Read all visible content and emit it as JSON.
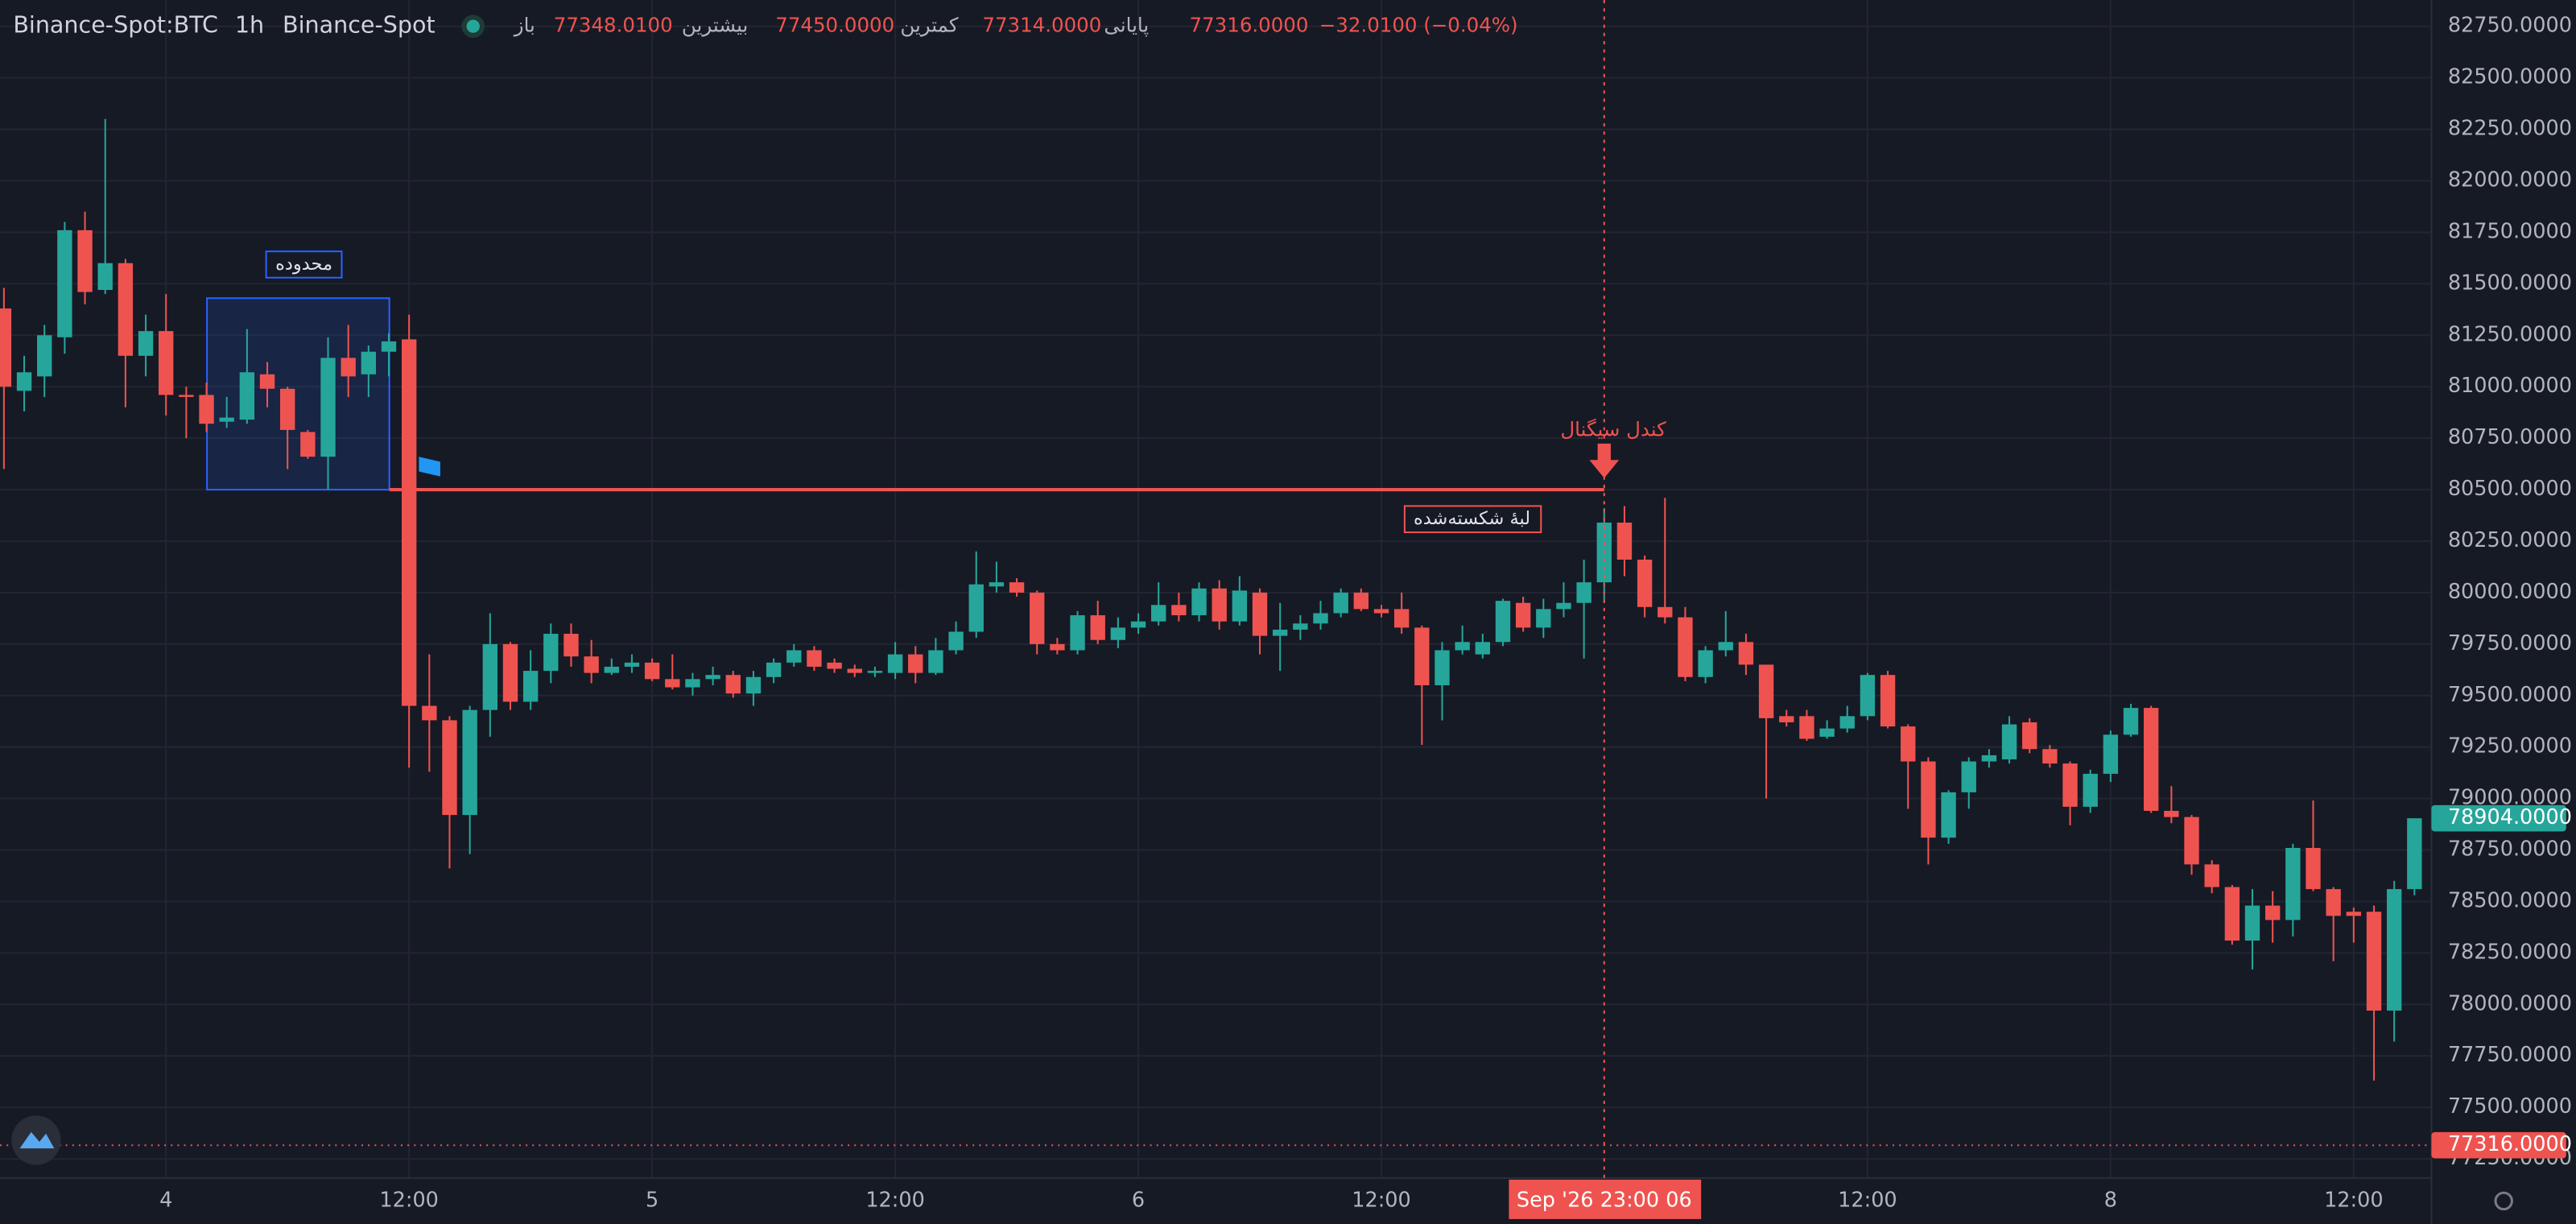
{
  "header": {
    "symbol": "Binance-Spot:BTC",
    "interval": "1h",
    "exchange": "Binance-Spot",
    "ohlc": [
      {
        "label": "باز",
        "value": "77348.0100"
      },
      {
        "label": "بیشترین",
        "value": "77450.0000"
      },
      {
        "label": "کمترین",
        "value": "77314.0000"
      },
      {
        "label": "پایانی",
        "value": "77316.0000"
      }
    ],
    "change": "−32.0100 (−0.04%)"
  },
  "chart_data": {
    "type": "candlestick",
    "categories": [
      null,
      null,
      null,
      null,
      null,
      null,
      null,
      null,
      "4",
      null,
      null,
      null,
      null,
      null,
      null,
      null,
      null,
      null,
      null,
      null,
      "12:00",
      null,
      null,
      null,
      null,
      null,
      null,
      null,
      null,
      null,
      null,
      null,
      "5",
      null,
      null,
      null,
      null,
      null,
      null,
      null,
      null,
      null,
      null,
      null,
      "12:00",
      null,
      null,
      null,
      null,
      null,
      null,
      null,
      null,
      null,
      null,
      null,
      "6",
      null,
      null,
      null,
      null,
      null,
      null,
      null,
      null,
      null,
      null,
      null,
      "12:00",
      null,
      null,
      null,
      null,
      null,
      null,
      null,
      null,
      null,
      null,
      null,
      null,
      null,
      null,
      null,
      null,
      null,
      null,
      null,
      null,
      null,
      null,
      null,
      "12:00",
      null,
      null,
      null,
      null,
      null,
      null,
      null,
      null,
      null,
      null,
      null,
      "8",
      null,
      null,
      null,
      null,
      null,
      null,
      null,
      null,
      null,
      null,
      null,
      "12:00",
      null,
      null,
      null
    ],
    "open": [
      81380,
      80980,
      81050,
      81240,
      81760,
      81470,
      81600,
      81150,
      81270,
      80960,
      80960,
      80830,
      80840,
      81060,
      80990,
      80780,
      80660,
      81140,
      81060,
      81170,
      81230,
      79450,
      79380,
      78920,
      79430,
      79750,
      79470,
      79620,
      79800,
      79690,
      79610,
      79640,
      79660,
      79580,
      79540,
      79580,
      79600,
      79510,
      79590,
      79660,
      79720,
      79660,
      79630,
      79610,
      79610,
      79700,
      79610,
      79720,
      79810,
      80030,
      80050,
      80000,
      79750,
      79720,
      79890,
      79770,
      79830,
      79860,
      79940,
      79890,
      80020,
      79860,
      80000,
      79790,
      79820,
      79850,
      79900,
      80000,
      79920,
      79920,
      79830,
      79550,
      79720,
      79700,
      79760,
      79950,
      79830,
      79920,
      79950,
      80050,
      80340,
      80160,
      79930,
      79880,
      79590,
      79720,
      79760,
      79650,
      79400,
      79400,
      79300,
      79340,
      79400,
      79600,
      79350,
      79180,
      78810,
      79030,
      79180,
      79190,
      79370,
      79240,
      79170,
      78960,
      79120,
      79310,
      79440,
      78940,
      78910,
      78680,
      78570,
      78310,
      78480,
      78410,
      78760,
      78560,
      78450,
      78450,
      77970,
      78560
    ],
    "high": [
      81480,
      81150,
      81300,
      81800,
      81850,
      82300,
      81620,
      81350,
      81450,
      81000,
      81020,
      80950,
      81280,
      81120,
      81000,
      80790,
      81240,
      81300,
      81200,
      81260,
      81350,
      79700,
      79400,
      79450,
      79900,
      79760,
      79720,
      79850,
      79850,
      79770,
      79680,
      79700,
      79680,
      79700,
      79610,
      79640,
      79620,
      79620,
      79680,
      79750,
      79740,
      79680,
      79650,
      79640,
      79760,
      79740,
      79780,
      79860,
      80200,
      80150,
      80070,
      80010,
      79780,
      79910,
      79960,
      79880,
      79900,
      80050,
      80000,
      80050,
      80060,
      80080,
      80020,
      79950,
      79890,
      79960,
      80020,
      80020,
      79940,
      80000,
      79840,
      79760,
      79840,
      79800,
      79970,
      79980,
      79970,
      80050,
      80160,
      80410,
      80420,
      80180,
      80460,
      79930,
      79740,
      79910,
      79800,
      79650,
      79430,
      79430,
      79380,
      79450,
      79610,
      79620,
      79360,
      79200,
      79040,
      79200,
      79240,
      79400,
      79390,
      79260,
      79180,
      79140,
      79330,
      79460,
      79450,
      79060,
      78920,
      78700,
      78580,
      78560,
      78550,
      78780,
      78990,
      78570,
      78470,
      78480,
      78600,
      78904
    ],
    "low": [
      80600,
      80880,
      80950,
      81160,
      81400,
      81450,
      80900,
      81050,
      80860,
      80750,
      80780,
      80800,
      80820,
      80900,
      80600,
      80650,
      80500,
      80950,
      80950,
      81050,
      79150,
      79130,
      78660,
      78730,
      79300,
      79430,
      79430,
      79560,
      79640,
      79560,
      79600,
      79610,
      79570,
      79530,
      79500,
      79550,
      79490,
      79450,
      79560,
      79640,
      79620,
      79610,
      79590,
      79590,
      79580,
      79560,
      79600,
      79700,
      79780,
      80000,
      79980,
      79700,
      79700,
      79700,
      79750,
      79730,
      79800,
      79840,
      79860,
      79860,
      79820,
      79840,
      79700,
      79620,
      79770,
      79820,
      79880,
      79910,
      79880,
      79800,
      79260,
      79380,
      79700,
      79680,
      79740,
      79810,
      79780,
      79880,
      79680,
      79950,
      80080,
      79880,
      79850,
      79570,
      79560,
      79690,
      79600,
      79000,
      79350,
      79280,
      79290,
      79320,
      79380,
      79340,
      78950,
      78680,
      78780,
      78950,
      79150,
      79170,
      79220,
      79150,
      78870,
      78930,
      79080,
      79300,
      78930,
      78880,
      78630,
      78540,
      78290,
      78170,
      78300,
      78330,
      78550,
      78210,
      78300,
      77630,
      77820,
      78530
    ],
    "close": [
      81000,
      81070,
      81250,
      81760,
      81460,
      81600,
      81150,
      81270,
      80960,
      80950,
      80820,
      80850,
      81070,
      80990,
      80790,
      80660,
      81140,
      81050,
      81170,
      81220,
      79450,
      79380,
      78920,
      79430,
      79750,
      79470,
      79620,
      79800,
      79690,
      79610,
      79640,
      79660,
      79580,
      79540,
      79580,
      79600,
      79510,
      79590,
      79660,
      79720,
      79640,
      79630,
      79610,
      79620,
      79700,
      79610,
      79720,
      79810,
      80040,
      80050,
      80000,
      79750,
      79720,
      79890,
      79770,
      79830,
      79860,
      79940,
      79890,
      80020,
      79860,
      80010,
      79790,
      79820,
      79850,
      79900,
      80000,
      79920,
      79900,
      79830,
      79550,
      79720,
      79760,
      79760,
      79960,
      79830,
      79920,
      79950,
      80050,
      80340,
      80160,
      79930,
      79880,
      79590,
      79720,
      79760,
      79650,
      79390,
      79370,
      79290,
      79340,
      79400,
      79600,
      79350,
      79180,
      78810,
      79030,
      79180,
      79210,
      79360,
      79240,
      79170,
      78960,
      79120,
      79310,
      79440,
      78940,
      78910,
      78680,
      78570,
      78310,
      78480,
      78410,
      78760,
      78560,
      78430,
      78430,
      77970,
      78560,
      78904
    ],
    "up_color": "#26a69a",
    "down_color": "#ef5350",
    "ylim": [
      77157,
      82878
    ],
    "yticks": [
      {
        "value": 77250,
        "label": "77250.0000"
      },
      {
        "value": 77500,
        "label": "77500.0000"
      },
      {
        "value": 77750,
        "label": "77750.0000"
      },
      {
        "value": 78000,
        "label": "78000.0000"
      },
      {
        "value": 78250,
        "label": "78250.0000"
      },
      {
        "value": 78500,
        "label": "78500.0000"
      },
      {
        "value": 78750,
        "label": "78750.0000"
      },
      {
        "value": 79000,
        "label": "79000.0000"
      },
      {
        "value": 79250,
        "label": "79250.0000"
      },
      {
        "value": 79500,
        "label": "79500.0000"
      },
      {
        "value": 79750,
        "label": "79750.0000"
      },
      {
        "value": 80000,
        "label": "80000.0000"
      },
      {
        "value": 80250,
        "label": "80250.0000"
      },
      {
        "value": 80500,
        "label": "80500.0000"
      },
      {
        "value": 80750,
        "label": "80750.0000"
      },
      {
        "value": 81000,
        "label": "81000.0000"
      },
      {
        "value": 81250,
        "label": "81250.0000"
      },
      {
        "value": 81500,
        "label": "81500.0000"
      },
      {
        "value": 81750,
        "label": "81750.0000"
      },
      {
        "value": 82000,
        "label": "82000.0000"
      },
      {
        "value": 82250,
        "label": "82250.0000"
      },
      {
        "value": 82500,
        "label": "82500.0000"
      },
      {
        "value": 82750,
        "label": "82750.0000"
      }
    ],
    "grid": true,
    "crosshair_label": "Sep '26   23:00 06",
    "price_markers": [
      {
        "value": 78904,
        "label": "78904.0000",
        "color": "#26a69a"
      },
      {
        "value": 77316,
        "label": "77316.0000",
        "color": "#ef5350"
      }
    ],
    "annotations": {
      "range_label": "محدوده",
      "range_top": 81430,
      "range_bottom": 80500,
      "signal_label": "کندل سیگنال",
      "level_label": "لبهٔ شکسته‌شده",
      "level": 80500
    }
  }
}
